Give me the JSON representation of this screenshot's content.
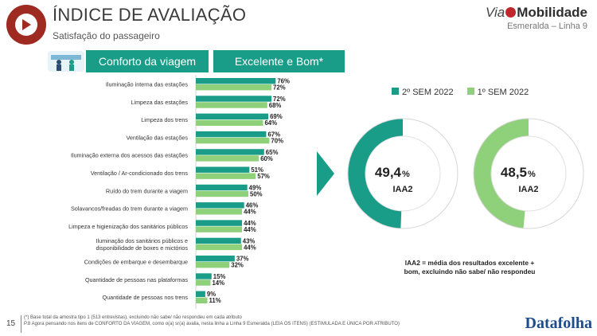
{
  "header": {
    "title": "ÍNDICE DE AVALIAÇÃO",
    "subtitle": "Satisfação do passageiro",
    "brand_prefix": "Via",
    "brand_name": "Mobilidade",
    "brand_line": "Esmeralda – Linha 9",
    "page_number": "15"
  },
  "section": {
    "title": "Conforto da viagem",
    "metric": "Excelente e Bom*",
    "icon": "passengers-icon"
  },
  "colors": {
    "dark": "#1a9d88",
    "light": "#8fd07a",
    "brand_red": "#9e2a22"
  },
  "chart_data": [
    {
      "type": "bar",
      "orientation": "horizontal",
      "title": "",
      "categories": [
        [
          "Iluminação interna das estações"
        ],
        [
          "Limpeza das estações"
        ],
        [
          "Limpeza dos trens"
        ],
        [
          "Ventilação das estações"
        ],
        [
          "Iluminação externa dos acessos das estações"
        ],
        [
          "Ventilação / Ar-condicionado dos trens"
        ],
        [
          "Ruído do trem durante a viagem"
        ],
        [
          "Solavancos/freadas do trem durante a viagem"
        ],
        [
          "Limpeza e higienização dos sanitários públicos"
        ],
        [
          "Iluminação dos sanitários públicos e",
          "disponibilidade de boxes e mictórios"
        ],
        [
          "Condições de embarque e desembarque"
        ],
        [
          "Quantidade de pessoas nas plataformas"
        ],
        [
          "Quantidade de pessoas nos trens"
        ]
      ],
      "series": [
        {
          "name": "2º SEM 2022",
          "color": "#1a9d88",
          "values": [
            76,
            72,
            69,
            67,
            65,
            51,
            49,
            46,
            44,
            43,
            37,
            15,
            9
          ]
        },
        {
          "name": "1º SEM 2022",
          "color": "#8fd07a",
          "values": [
            72,
            68,
            64,
            70,
            60,
            57,
            50,
            44,
            44,
            44,
            32,
            14,
            11
          ]
        }
      ],
      "value_suffix": "%",
      "xlim": [
        0,
        100
      ]
    },
    {
      "type": "pie",
      "variant": "donut",
      "series_name": "2º SEM 2022",
      "value": 49.4,
      "value_label": "49,4",
      "unit": "%",
      "label": "IAA2",
      "color": "#1a9d88"
    },
    {
      "type": "pie",
      "variant": "donut",
      "series_name": "1º SEM 2022",
      "value": 48.5,
      "value_label": "48,5",
      "unit": "%",
      "label": "IAA2",
      "color": "#8fd07a"
    }
  ],
  "note": "IAA2 = média dos resultados excelente + bom, excluindo não sabe/ não respondeu",
  "footnotes": [
    "(*) Base total da amostra tipo 1 (513 entrevistas), excluindo não sabe/ não respondeu em cada atributo",
    "P.8 Agora pensando nos itens de CONFORTO DA VIAGEM, como o(a) sr(a) avalia, nesta linha a Linha 9 Esmeralda (LEIA OS ITENS) (ESTIMULADA E ÚNICA POR ATRIBUTO)"
  ],
  "footer_brand": "Datafolha"
}
